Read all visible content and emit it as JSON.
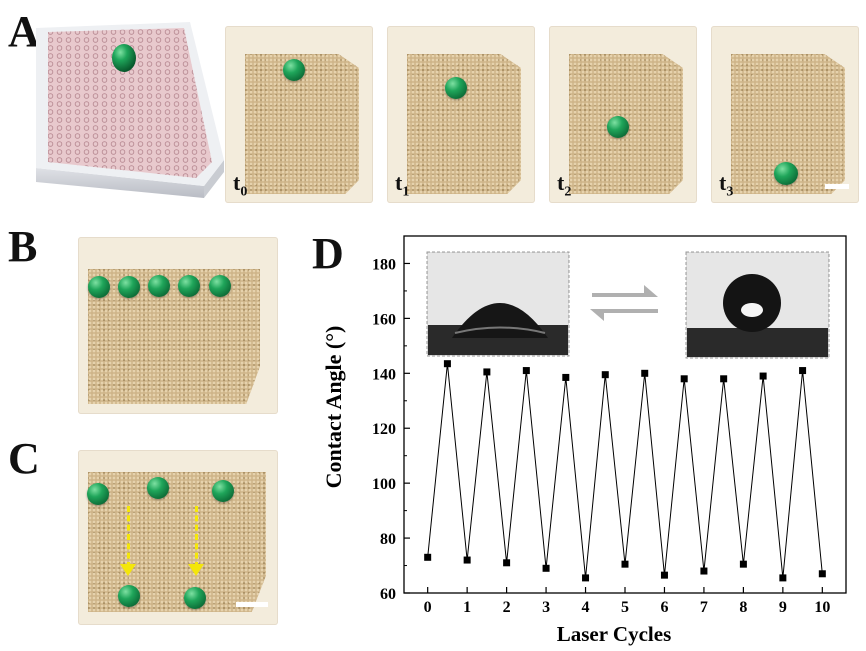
{
  "panels": {
    "a": "A",
    "b": "B",
    "c": "C",
    "d": "D"
  },
  "timepoints": [
    {
      "base": "t",
      "sub": "0"
    },
    {
      "base": "t",
      "sub": "1"
    },
    {
      "base": "t",
      "sub": "2"
    },
    {
      "base": "t",
      "sub": "3"
    }
  ],
  "colors": {
    "droplet": "#1fa55a",
    "mesh": "#cfb58a",
    "arrow": "#f4e60a",
    "line": "#000000"
  },
  "chart_data": {
    "type": "line",
    "xlabel": "Laser Cycles",
    "ylabel": "Contact Angle (°)",
    "xlim": [
      -0.6,
      10.6
    ],
    "ylim": [
      60,
      190
    ],
    "xticks": [
      0,
      1,
      2,
      3,
      4,
      5,
      6,
      7,
      8,
      9,
      10
    ],
    "yticks": [
      60,
      80,
      100,
      120,
      140,
      160,
      180
    ],
    "series": [
      {
        "marker": "square",
        "x": [
          0,
          0.5,
          1,
          1.5,
          2,
          2.5,
          3,
          3.5,
          4,
          4.5,
          5,
          5.5,
          6,
          6.5,
          7,
          7.5,
          8,
          8.5,
          9,
          9.5,
          10
        ],
        "y": [
          73,
          143.5,
          72,
          140.5,
          71,
          141,
          69,
          138.5,
          65.5,
          139.5,
          70.5,
          140,
          66.5,
          138,
          68,
          138,
          70.5,
          139,
          65.5,
          141,
          67
        ]
      }
    ]
  }
}
